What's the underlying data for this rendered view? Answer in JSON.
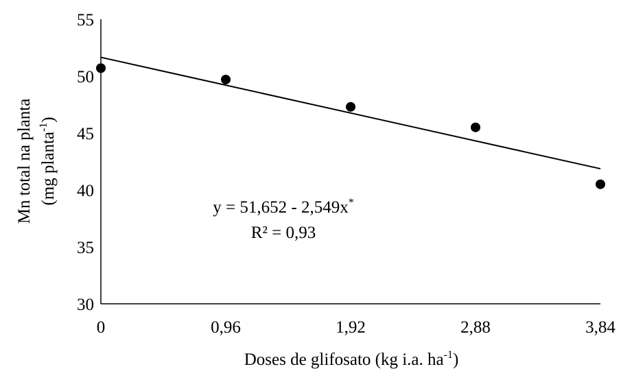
{
  "chart_data": {
    "type": "scatter",
    "x_ticks": [
      "0",
      "0,96",
      "1,92",
      "2,88",
      "3,84"
    ],
    "y_ticks": [
      "30",
      "35",
      "40",
      "45",
      "50",
      "55"
    ],
    "xlim": [
      0,
      3.84
    ],
    "ylim": [
      30,
      55
    ],
    "x": [
      0,
      0.96,
      1.92,
      2.88,
      3.84
    ],
    "y": [
      50.7,
      49.7,
      47.3,
      45.5,
      40.5
    ],
    "trendline": {
      "intercept": 51.652,
      "slope": -2.549
    },
    "xlabel": {
      "main": "Doses de glifosato (kg i.a. ha",
      "sup": "-1",
      "end": ")"
    },
    "ylabel": {
      "line1": "Mn total na planta",
      "line2_main": "(mg planta",
      "line2_sup": "-1",
      "line2_end": ")"
    },
    "equation": {
      "main": "y = 51,652 - 2,549x",
      "sup": "*"
    },
    "r2": "R² = 0,93",
    "grid": false,
    "legend": "none"
  }
}
